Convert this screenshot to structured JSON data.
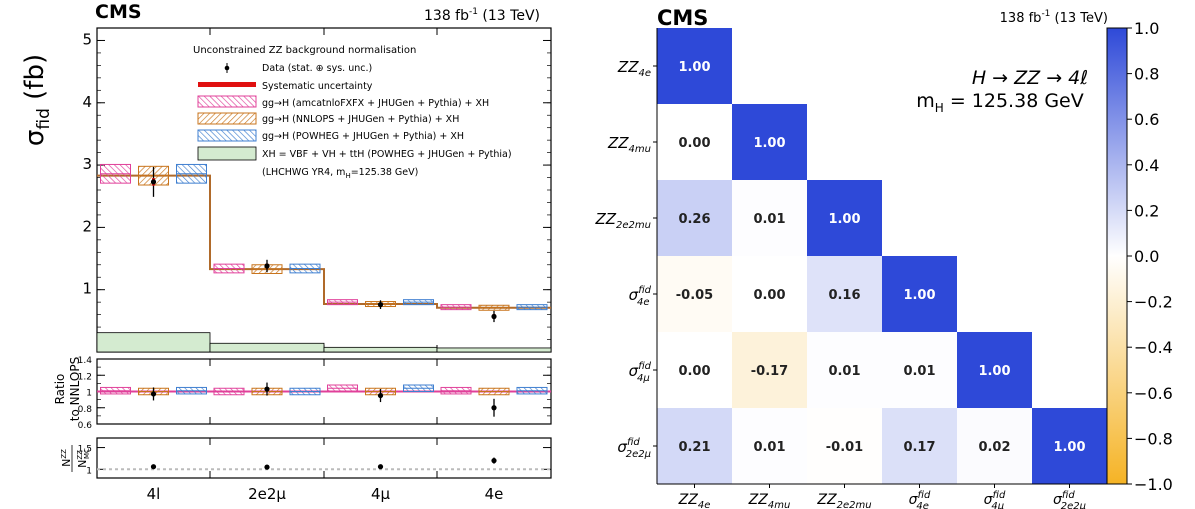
{
  "colors": {
    "pink": "#e0409a",
    "orange": "#c8741c",
    "blue": "#3f7fd0",
    "data_line": "#b06a2a",
    "xh_fill": "#d4ebd0",
    "syst": "#e01010",
    "corr_pos": "#2e49d8",
    "corr_neg": "#f5b325"
  },
  "left": {
    "cms_label": "CMS",
    "lumi_main": "138 fb",
    "lumi_sup": "-1",
    "lumi_rest": " (13 TeV)",
    "ylabel_main": "σ",
    "ylabel_sub": "fid",
    "ylabel_unit": " (fb)",
    "legend": {
      "title": "Unconstrained ZZ background normalisation",
      "data": "Data (stat. ⊕ sys. unc.)",
      "syst": "Systematic uncertainty",
      "amc": "gg→H (amcatnloFXFX + JHUGen + Pythia) + XH",
      "nnlops": "gg→H (NNLOPS + JHUGen + Pythia) + XH",
      "powheg": "gg→H (POWHEG + JHUGen + Pythia) + XH",
      "xh": "XH = VBF + VH + ttH (POWHEG + JHUGen + Pythia)",
      "lhc_main": "(LHCHWG YR4, m",
      "lhc_sub": "H",
      "lhc_rest": "=125.38 GeV)"
    },
    "ratio_label_1": "Ratio",
    "ratio_label_2": "to NNLOPS",
    "nzz_num_main": "N",
    "nzz_num_sup": "ZZ",
    "nzz_den_main": "N",
    "nzz_den_sup": "ZZ",
    "nzz_den_sub": "MC"
  },
  "right": {
    "cms_label": "CMS",
    "lumi_main": "138 fb",
    "lumi_sup": "-1",
    "lumi_rest": " (13 TeV)",
    "annotation_1": "H → ZZ → 4ℓ",
    "annotation_2_main": "m",
    "annotation_2_sub": "H",
    "annotation_2_rest": " = 125.38 GeV"
  },
  "chart_data": [
    {
      "type": "bar",
      "panel": "main",
      "categories": [
        "4l",
        "2e2μ",
        "4μ",
        "4e"
      ],
      "ylim": [
        0,
        5.2
      ],
      "yticks": [
        "1",
        "2",
        "3",
        "4",
        "5"
      ],
      "data": {
        "values": [
          2.73,
          1.38,
          0.76,
          0.57
        ],
        "err_low": [
          0.24,
          0.1,
          0.07,
          0.09
        ],
        "err_high": [
          0.24,
          0.1,
          0.07,
          0.09
        ]
      },
      "systematic_uncertainty": [
        0.06,
        0.04,
        0.02,
        0.04
      ],
      "series": [
        {
          "name": "gg→H (amcatnloFXFX + JHUGen + Pythia) + XH",
          "values": [
            2.86,
            1.34,
            0.8,
            0.72
          ],
          "band": [
            0.15,
            0.07,
            0.04,
            0.04
          ]
        },
        {
          "name": "gg→H (NNLOPS + JHUGen + Pythia) + XH",
          "values": [
            2.83,
            1.33,
            0.77,
            0.71
          ],
          "band": [
            0.15,
            0.07,
            0.04,
            0.04
          ]
        },
        {
          "name": "gg→H (POWHEG + JHUGen + Pythia) + XH",
          "values": [
            2.86,
            1.34,
            0.8,
            0.72
          ],
          "band": [
            0.15,
            0.07,
            0.04,
            0.04
          ]
        }
      ],
      "xh": {
        "name": "XH = VBF + VH + ttH (POWHEG + JHUGen + Pythia)",
        "values": [
          0.31,
          0.14,
          0.075,
          0.065
        ]
      }
    },
    {
      "type": "scatter",
      "panel": "ratio",
      "categories": [
        "4l",
        "2e2μ",
        "4μ",
        "4e"
      ],
      "ylim": [
        0.6,
        1.4
      ],
      "yticks": [
        "0.6",
        "0.8",
        "1",
        "1.2",
        "1.4"
      ],
      "data": {
        "values": [
          0.97,
          1.03,
          0.95,
          0.8
        ],
        "err_low": [
          0.08,
          0.08,
          0.08,
          0.11
        ],
        "err_high": [
          0.08,
          0.08,
          0.08,
          0.11
        ]
      },
      "series": [
        {
          "name": "amcatnloFXFX",
          "values": [
            1.01,
            1.0,
            1.04,
            1.01
          ],
          "band": [
            0.04,
            0.04,
            0.04,
            0.04
          ]
        },
        {
          "name": "NNLOPS",
          "values": [
            1.0,
            1.0,
            1.0,
            1.0
          ],
          "band": [
            0.04,
            0.04,
            0.04,
            0.04
          ]
        },
        {
          "name": "POWHEG",
          "values": [
            1.01,
            1.0,
            1.04,
            1.01
          ],
          "band": [
            0.04,
            0.04,
            0.04,
            0.04
          ]
        }
      ]
    },
    {
      "type": "scatter",
      "panel": "nzz",
      "categories": [
        "4l",
        "2e2μ",
        "4μ",
        "4e"
      ],
      "ylim": [
        0.8,
        1.72
      ],
      "yticks": [
        "1",
        "1.5"
      ],
      "data": {
        "values": [
          1.06,
          1.05,
          1.06,
          1.2
        ],
        "err_low": [
          0.03,
          0.04,
          0.05,
          0.07
        ],
        "err_high": [
          0.03,
          0.04,
          0.05,
          0.07
        ]
      },
      "reference": 1.0
    },
    {
      "type": "heatmap",
      "rows": [
        "ZZ_4e",
        "ZZ_4mu",
        "ZZ_2e2mu",
        "σfid_4e",
        "σfid_4μ",
        "σfid_2e2μ"
      ],
      "columns": [
        "ZZ_4e",
        "ZZ_4mu",
        "ZZ_2e2mu",
        "σfid_4e",
        "σfid_4μ",
        "σfid_2e2μ"
      ],
      "values": [
        [
          1.0
        ],
        [
          0.0,
          1.0
        ],
        [
          0.26,
          0.01,
          1.0
        ],
        [
          -0.05,
          0.0,
          0.16,
          1.0
        ],
        [
          0.0,
          -0.17,
          0.01,
          0.01,
          1.0
        ],
        [
          0.21,
          0.01,
          -0.01,
          0.17,
          0.02,
          1.0
        ]
      ],
      "value_labels": [
        [
          "1.00"
        ],
        [
          "0.00",
          "1.00"
        ],
        [
          "0.26",
          "0.01",
          "1.00"
        ],
        [
          "-0.05",
          "0.00",
          "0.16",
          "1.00"
        ],
        [
          "0.00",
          "-0.17",
          "0.01",
          "0.01",
          "1.00"
        ],
        [
          "0.21",
          "0.01",
          "-0.01",
          "0.17",
          "0.02",
          "1.00"
        ]
      ],
      "colorbar_range": [
        -1.0,
        1.0
      ],
      "colorbar_ticks": [
        "1.0",
        "0.8",
        "0.6",
        "0.4",
        "0.2",
        "0.0",
        "−0.2",
        "−0.4",
        "−0.6",
        "−0.8",
        "−1.0"
      ]
    }
  ]
}
